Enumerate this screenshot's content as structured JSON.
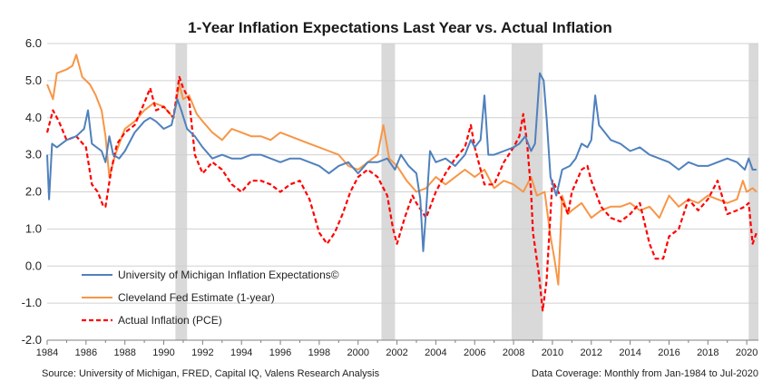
{
  "chart_data": {
    "type": "line",
    "title": "1-Year Inflation Expectations Last Year vs. Actual Inflation",
    "xlabel": "",
    "ylabel": "",
    "xlim": [
      1984,
      2020.6
    ],
    "ylim": [
      -2.0,
      6.0
    ],
    "y_ticks": [
      "-2.0",
      "-1.0",
      "0.0",
      "1.0",
      "2.0",
      "3.0",
      "4.0",
      "5.0",
      "6.0"
    ],
    "x_ticks": [
      "1984",
      "1986",
      "1988",
      "1990",
      "1992",
      "1994",
      "1996",
      "1998",
      "2000",
      "2002",
      "2004",
      "2006",
      "2008",
      "2010",
      "2012",
      "2014",
      "2016",
      "2018",
      "2020"
    ],
    "grid": "horizontal",
    "legend_position": "bottom-left",
    "recessions": [
      [
        1990.6,
        1991.2
      ],
      [
        2001.2,
        2001.9
      ],
      [
        2007.9,
        2009.5
      ],
      [
        2020.1,
        2020.6
      ]
    ],
    "series": [
      {
        "name": "University of Michigan Inflation Expectations©",
        "color": "#4f81bd",
        "style": "solid",
        "points": [
          [
            1984.0,
            3.0
          ],
          [
            1984.1,
            1.8
          ],
          [
            1984.25,
            3.3
          ],
          [
            1984.5,
            3.2
          ],
          [
            1985.0,
            3.4
          ],
          [
            1985.5,
            3.5
          ],
          [
            1985.9,
            3.7
          ],
          [
            1986.1,
            4.2
          ],
          [
            1986.3,
            3.3
          ],
          [
            1986.8,
            3.1
          ],
          [
            1987.0,
            2.8
          ],
          [
            1987.2,
            3.5
          ],
          [
            1987.4,
            3.0
          ],
          [
            1987.7,
            2.9
          ],
          [
            1988.0,
            3.1
          ],
          [
            1988.5,
            3.6
          ],
          [
            1989.0,
            3.9
          ],
          [
            1989.3,
            4.0
          ],
          [
            1989.6,
            3.9
          ],
          [
            1990.0,
            3.7
          ],
          [
            1990.4,
            3.8
          ],
          [
            1990.7,
            4.5
          ],
          [
            1990.9,
            4.2
          ],
          [
            1991.2,
            3.7
          ],
          [
            1991.6,
            3.5
          ],
          [
            1992.0,
            3.2
          ],
          [
            1992.5,
            2.9
          ],
          [
            1993.0,
            3.0
          ],
          [
            1993.5,
            2.9
          ],
          [
            1994.0,
            2.9
          ],
          [
            1994.5,
            3.0
          ],
          [
            1995.0,
            3.0
          ],
          [
            1995.5,
            2.9
          ],
          [
            1996.0,
            2.8
          ],
          [
            1996.5,
            2.9
          ],
          [
            1997.0,
            2.9
          ],
          [
            1997.5,
            2.8
          ],
          [
            1998.0,
            2.7
          ],
          [
            1998.5,
            2.5
          ],
          [
            1999.0,
            2.7
          ],
          [
            1999.5,
            2.8
          ],
          [
            2000.0,
            2.5
          ],
          [
            2000.5,
            2.8
          ],
          [
            2001.0,
            2.8
          ],
          [
            2001.5,
            2.9
          ],
          [
            2001.9,
            2.6
          ],
          [
            2002.2,
            3.0
          ],
          [
            2002.6,
            2.7
          ],
          [
            2003.0,
            2.5
          ],
          [
            2003.2,
            1.8
          ],
          [
            2003.35,
            0.4
          ],
          [
            2003.5,
            1.5
          ],
          [
            2003.7,
            3.1
          ],
          [
            2004.0,
            2.8
          ],
          [
            2004.5,
            2.9
          ],
          [
            2005.0,
            2.7
          ],
          [
            2005.5,
            3.0
          ],
          [
            2005.8,
            3.4
          ],
          [
            2006.0,
            3.2
          ],
          [
            2006.3,
            3.4
          ],
          [
            2006.5,
            4.6
          ],
          [
            2006.7,
            3.0
          ],
          [
            2007.0,
            3.0
          ],
          [
            2007.5,
            3.1
          ],
          [
            2008.0,
            3.2
          ],
          [
            2008.3,
            3.3
          ],
          [
            2008.6,
            3.5
          ],
          [
            2008.9,
            3.1
          ],
          [
            2009.1,
            3.3
          ],
          [
            2009.35,
            5.2
          ],
          [
            2009.55,
            5.0
          ],
          [
            2009.7,
            4.0
          ],
          [
            2009.9,
            2.4
          ],
          [
            2010.2,
            1.9
          ],
          [
            2010.5,
            2.6
          ],
          [
            2010.9,
            2.7
          ],
          [
            2011.2,
            2.9
          ],
          [
            2011.5,
            3.3
          ],
          [
            2011.8,
            3.2
          ],
          [
            2012.0,
            3.4
          ],
          [
            2012.2,
            4.6
          ],
          [
            2012.4,
            3.8
          ],
          [
            2012.7,
            3.6
          ],
          [
            2013.0,
            3.4
          ],
          [
            2013.5,
            3.3
          ],
          [
            2014.0,
            3.1
          ],
          [
            2014.5,
            3.2
          ],
          [
            2015.0,
            3.0
          ],
          [
            2015.5,
            2.9
          ],
          [
            2016.0,
            2.8
          ],
          [
            2016.5,
            2.6
          ],
          [
            2017.0,
            2.8
          ],
          [
            2017.5,
            2.7
          ],
          [
            2018.0,
            2.7
          ],
          [
            2018.5,
            2.8
          ],
          [
            2019.0,
            2.9
          ],
          [
            2019.5,
            2.8
          ],
          [
            2019.9,
            2.6
          ],
          [
            2020.1,
            2.9
          ],
          [
            2020.3,
            2.6
          ],
          [
            2020.5,
            2.6
          ]
        ]
      },
      {
        "name": "Cleveland Fed Estimate (1-year)",
        "color": "#f79646",
        "style": "solid",
        "points": [
          [
            1984.0,
            4.9
          ],
          [
            1984.3,
            4.5
          ],
          [
            1984.5,
            5.2
          ],
          [
            1985.0,
            5.3
          ],
          [
            1985.3,
            5.4
          ],
          [
            1985.5,
            5.7
          ],
          [
            1985.8,
            5.1
          ],
          [
            1986.2,
            4.9
          ],
          [
            1986.5,
            4.6
          ],
          [
            1986.8,
            4.2
          ],
          [
            1987.0,
            3.5
          ],
          [
            1987.2,
            2.4
          ],
          [
            1987.5,
            3.0
          ],
          [
            1988.0,
            3.7
          ],
          [
            1988.5,
            3.9
          ],
          [
            1989.0,
            4.2
          ],
          [
            1989.5,
            4.4
          ],
          [
            1990.0,
            4.3
          ],
          [
            1990.5,
            4.0
          ],
          [
            1990.8,
            4.9
          ],
          [
            1991.0,
            4.5
          ],
          [
            1991.3,
            4.6
          ],
          [
            1991.7,
            4.1
          ],
          [
            1992.0,
            3.9
          ],
          [
            1992.5,
            3.6
          ],
          [
            1993.0,
            3.4
          ],
          [
            1993.5,
            3.7
          ],
          [
            1994.0,
            3.6
          ],
          [
            1994.5,
            3.5
          ],
          [
            1995.0,
            3.5
          ],
          [
            1995.5,
            3.4
          ],
          [
            1996.0,
            3.6
          ],
          [
            1996.5,
            3.5
          ],
          [
            1997.0,
            3.4
          ],
          [
            1997.5,
            3.3
          ],
          [
            1998.0,
            3.2
          ],
          [
            1998.5,
            3.1
          ],
          [
            1999.0,
            3.0
          ],
          [
            1999.5,
            2.7
          ],
          [
            2000.0,
            2.6
          ],
          [
            2000.5,
            2.8
          ],
          [
            2001.0,
            3.0
          ],
          [
            2001.3,
            3.8
          ],
          [
            2001.6,
            2.9
          ],
          [
            2002.0,
            2.7
          ],
          [
            2002.5,
            2.3
          ],
          [
            2003.0,
            2.0
          ],
          [
            2003.5,
            2.1
          ],
          [
            2004.0,
            2.4
          ],
          [
            2004.5,
            2.2
          ],
          [
            2005.0,
            2.4
          ],
          [
            2005.5,
            2.6
          ],
          [
            2006.0,
            2.4
          ],
          [
            2006.5,
            2.6
          ],
          [
            2007.0,
            2.1
          ],
          [
            2007.5,
            2.3
          ],
          [
            2008.0,
            2.2
          ],
          [
            2008.5,
            2.0
          ],
          [
            2008.9,
            2.4
          ],
          [
            2009.2,
            1.9
          ],
          [
            2009.6,
            2.0
          ],
          [
            2009.9,
            0.8
          ],
          [
            2010.1,
            0.2
          ],
          [
            2010.3,
            -0.5
          ],
          [
            2010.5,
            1.9
          ],
          [
            2010.8,
            1.4
          ],
          [
            2011.0,
            1.5
          ],
          [
            2011.5,
            1.7
          ],
          [
            2012.0,
            1.3
          ],
          [
            2012.5,
            1.5
          ],
          [
            2013.0,
            1.6
          ],
          [
            2013.5,
            1.6
          ],
          [
            2014.0,
            1.7
          ],
          [
            2014.5,
            1.5
          ],
          [
            2015.0,
            1.6
          ],
          [
            2015.5,
            1.3
          ],
          [
            2016.0,
            1.9
          ],
          [
            2016.5,
            1.6
          ],
          [
            2017.0,
            1.8
          ],
          [
            2017.5,
            1.7
          ],
          [
            2018.0,
            1.9
          ],
          [
            2018.5,
            1.8
          ],
          [
            2019.0,
            1.7
          ],
          [
            2019.5,
            1.8
          ],
          [
            2019.8,
            2.3
          ],
          [
            2020.0,
            2.0
          ],
          [
            2020.3,
            2.1
          ],
          [
            2020.5,
            2.0
          ]
        ]
      },
      {
        "name": "Actual Inflation (PCE)",
        "color": "#ff0000",
        "style": "dashed",
        "points": [
          [
            1984.0,
            3.6
          ],
          [
            1984.3,
            4.2
          ],
          [
            1984.6,
            3.9
          ],
          [
            1985.0,
            3.4
          ],
          [
            1985.5,
            3.5
          ],
          [
            1986.0,
            3.2
          ],
          [
            1986.3,
            2.2
          ],
          [
            1986.6,
            2.0
          ],
          [
            1986.9,
            1.6
          ],
          [
            1987.0,
            1.6
          ],
          [
            1987.3,
            2.6
          ],
          [
            1987.6,
            3.3
          ],
          [
            1988.0,
            3.6
          ],
          [
            1988.5,
            3.8
          ],
          [
            1989.0,
            4.4
          ],
          [
            1989.3,
            4.8
          ],
          [
            1989.6,
            4.2
          ],
          [
            1990.0,
            4.3
          ],
          [
            1990.5,
            4.0
          ],
          [
            1990.8,
            5.1
          ],
          [
            1991.0,
            4.8
          ],
          [
            1991.3,
            4.5
          ],
          [
            1991.6,
            3.0
          ],
          [
            1992.0,
            2.5
          ],
          [
            1992.5,
            2.8
          ],
          [
            1993.0,
            2.6
          ],
          [
            1993.5,
            2.2
          ],
          [
            1994.0,
            2.0
          ],
          [
            1994.5,
            2.3
          ],
          [
            1995.0,
            2.3
          ],
          [
            1995.5,
            2.2
          ],
          [
            1996.0,
            2.0
          ],
          [
            1996.5,
            2.2
          ],
          [
            1997.0,
            2.3
          ],
          [
            1997.5,
            1.8
          ],
          [
            1998.0,
            0.9
          ],
          [
            1998.4,
            0.6
          ],
          [
            1998.8,
            0.9
          ],
          [
            1999.2,
            1.4
          ],
          [
            1999.6,
            2.0
          ],
          [
            2000.0,
            2.4
          ],
          [
            2000.5,
            2.6
          ],
          [
            2001.0,
            2.4
          ],
          [
            2001.5,
            1.9
          ],
          [
            2001.8,
            1.0
          ],
          [
            2002.0,
            0.6
          ],
          [
            2002.4,
            1.3
          ],
          [
            2002.8,
            1.9
          ],
          [
            2003.0,
            1.7
          ],
          [
            2003.5,
            1.3
          ],
          [
            2004.0,
            2.0
          ],
          [
            2004.5,
            2.5
          ],
          [
            2005.0,
            2.9
          ],
          [
            2005.5,
            3.2
          ],
          [
            2005.8,
            3.8
          ],
          [
            2006.0,
            3.2
          ],
          [
            2006.5,
            2.2
          ],
          [
            2007.0,
            2.2
          ],
          [
            2007.5,
            2.8
          ],
          [
            2008.0,
            3.2
          ],
          [
            2008.3,
            3.5
          ],
          [
            2008.5,
            4.1
          ],
          [
            2008.7,
            3.3
          ],
          [
            2008.9,
            2.0
          ],
          [
            2009.0,
            0.9
          ],
          [
            2009.3,
            -0.2
          ],
          [
            2009.5,
            -1.2
          ],
          [
            2009.7,
            -0.4
          ],
          [
            2009.9,
            1.4
          ],
          [
            2010.0,
            2.3
          ],
          [
            2010.4,
            1.9
          ],
          [
            2010.8,
            1.4
          ],
          [
            2011.0,
            2.0
          ],
          [
            2011.5,
            2.6
          ],
          [
            2011.8,
            2.7
          ],
          [
            2012.0,
            2.3
          ],
          [
            2012.5,
            1.6
          ],
          [
            2013.0,
            1.3
          ],
          [
            2013.5,
            1.2
          ],
          [
            2014.0,
            1.4
          ],
          [
            2014.5,
            1.7
          ],
          [
            2015.0,
            0.6
          ],
          [
            2015.3,
            0.2
          ],
          [
            2015.7,
            0.2
          ],
          [
            2016.0,
            0.8
          ],
          [
            2016.5,
            1.0
          ],
          [
            2017.0,
            1.8
          ],
          [
            2017.5,
            1.5
          ],
          [
            2018.0,
            1.8
          ],
          [
            2018.5,
            2.3
          ],
          [
            2019.0,
            1.4
          ],
          [
            2019.5,
            1.5
          ],
          [
            2019.9,
            1.6
          ],
          [
            2020.1,
            1.7
          ],
          [
            2020.3,
            0.6
          ],
          [
            2020.5,
            0.9
          ]
        ]
      }
    ]
  },
  "footer": {
    "source": "Source: University of Michigan, FRED, Capital IQ, Valens Research Analysis",
    "coverage": "Data Coverage: Monthly from Jan-1984 to Jul-2020"
  }
}
